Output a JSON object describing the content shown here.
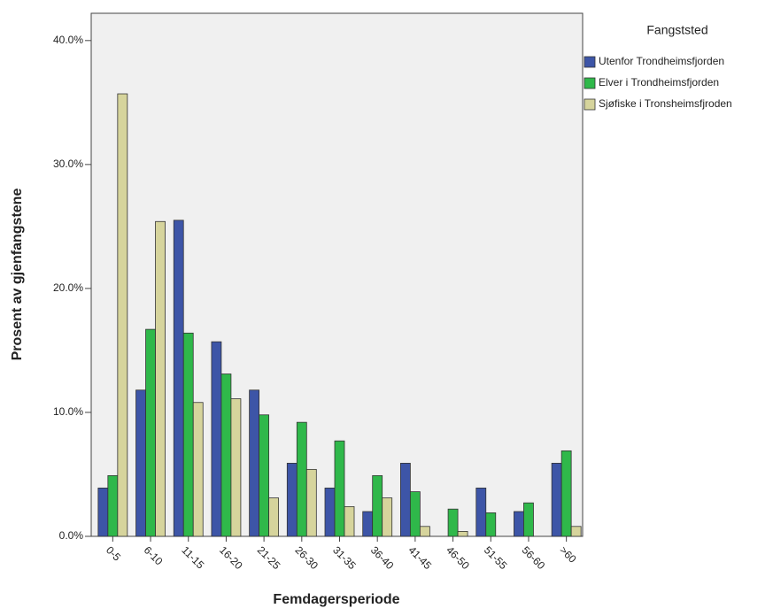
{
  "chart_data": {
    "type": "bar",
    "title": "Fangststed",
    "x_label": "Femdagersperiode",
    "y_label": "Prosent av gjenfangstene",
    "categories": [
      "0-5",
      "6-10",
      "11-15",
      "16-20",
      "21-25",
      "26-30",
      "31-35",
      "36-40",
      "41-45",
      "46-50",
      "51-55",
      "56-60",
      ">60"
    ],
    "series": [
      {
        "name": "Utenfor Trondheimsfjorden",
        "color": "#3d55a7",
        "values": [
          3.9,
          11.8,
          25.5,
          15.7,
          11.8,
          5.9,
          3.9,
          2.0,
          5.9,
          0,
          3.9,
          2.0,
          5.9
        ]
      },
      {
        "name": "Elver i Trondheimsfjorden",
        "color": "#2fb84a",
        "values": [
          4.9,
          16.7,
          16.4,
          13.1,
          9.8,
          9.2,
          7.7,
          4.9,
          3.6,
          2.2,
          1.9,
          2.7,
          6.9
        ]
      },
      {
        "name": "Sjøfiske i Tronsheimsfjroden",
        "color": "#d6d49c",
        "values": [
          35.7,
          25.4,
          10.8,
          11.1,
          3.1,
          5.4,
          2.4,
          3.1,
          0.8,
          0.4,
          0,
          0,
          0.8
        ]
      }
    ],
    "ylim": [
      0,
      42.2
    ],
    "yticks": [
      {
        "value": 0,
        "label": "0.0%"
      },
      {
        "value": 10,
        "label": "10.0%"
      },
      {
        "value": 20,
        "label": "20.0%"
      },
      {
        "value": 30,
        "label": "30.0%"
      },
      {
        "value": 40,
        "label": "40.0%"
      }
    ],
    "legend": "right"
  }
}
